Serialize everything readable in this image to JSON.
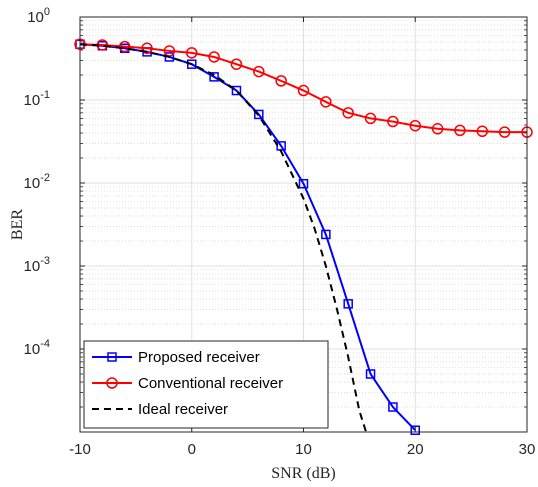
{
  "chart_data": {
    "type": "line",
    "title": "",
    "xlabel": "SNR (dB)",
    "ylabel": "BER",
    "xlim": [
      -10,
      30
    ],
    "ylim": [
      1e-05,
      1
    ],
    "yscale": "log",
    "grid": true,
    "minor_grid": true,
    "legend_position": "bottom-left",
    "x_ticks": [
      -10,
      0,
      10,
      20,
      30
    ],
    "x_tick_labels": [
      "-10",
      "0",
      "10",
      "20",
      "30"
    ],
    "y_ticks": [
      1,
      0.1,
      0.01,
      0.001,
      0.0001
    ],
    "y_tick_labels": [
      {
        "base": "10",
        "exp": "0"
      },
      {
        "base": "10",
        "exp": "-1"
      },
      {
        "base": "10",
        "exp": "-2"
      },
      {
        "base": "10",
        "exp": "-3"
      },
      {
        "base": "10",
        "exp": "-4"
      }
    ],
    "series": [
      {
        "name": "Proposed receiver",
        "color": "#0000ff",
        "marker": "square",
        "dash": "solid",
        "x": [
          -10,
          -8,
          -6,
          -4,
          -2,
          0,
          2,
          4,
          6,
          8,
          10,
          12,
          14,
          16,
          18,
          20
        ],
        "y": [
          0.47,
          0.45,
          0.42,
          0.38,
          0.33,
          0.27,
          0.19,
          0.13,
          0.067,
          0.028,
          0.0098,
          0.0024,
          0.00035,
          5e-05,
          2e-05,
          1.05e-05
        ]
      },
      {
        "name": "Conventional receiver",
        "color": "#ff0000",
        "marker": "circle",
        "dash": "solid",
        "x": [
          -10,
          -8,
          -6,
          -4,
          -2,
          0,
          2,
          4,
          6,
          8,
          10,
          12,
          14,
          16,
          18,
          20,
          22,
          24,
          26,
          28,
          30
        ],
        "y": [
          0.47,
          0.46,
          0.44,
          0.42,
          0.39,
          0.37,
          0.33,
          0.27,
          0.22,
          0.17,
          0.13,
          0.095,
          0.07,
          0.06,
          0.055,
          0.049,
          0.045,
          0.043,
          0.042,
          0.041,
          0.041
        ]
      },
      {
        "name": "Ideal receiver",
        "color": "#000000",
        "marker": "none",
        "dash": "dashed",
        "x": [
          -10,
          -8,
          -6,
          -4,
          -2,
          0,
          2,
          4,
          6,
          8,
          10,
          11,
          12,
          13,
          14,
          15,
          15.6
        ],
        "y": [
          0.47,
          0.45,
          0.42,
          0.38,
          0.33,
          0.27,
          0.2,
          0.13,
          0.065,
          0.024,
          0.0065,
          0.0028,
          0.001,
          0.0003,
          8e-05,
          1.8e-05,
          1e-05
        ]
      }
    ]
  }
}
